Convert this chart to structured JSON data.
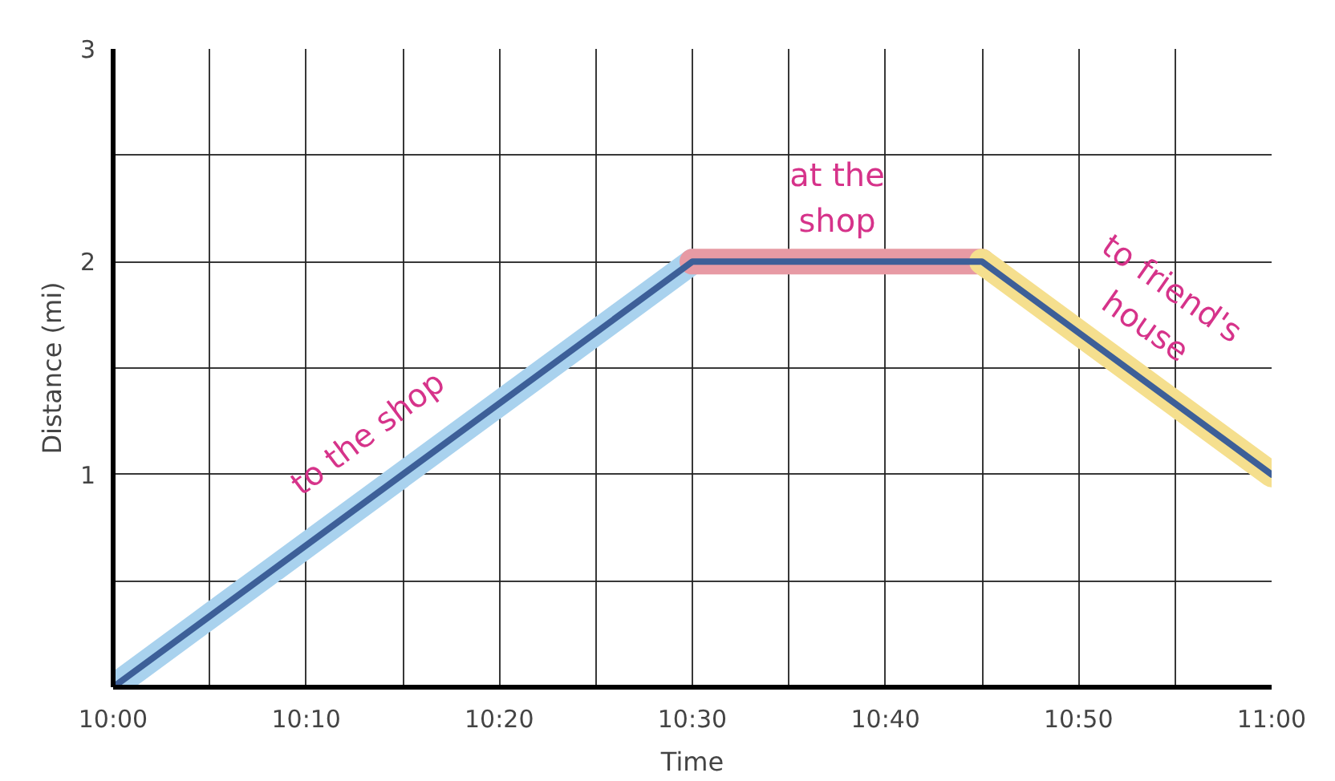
{
  "chart_data": {
    "type": "line",
    "xlabel": "Time",
    "ylabel": "Distance (mi)",
    "xlim": [
      10,
      11
    ],
    "ylim": [
      0,
      3
    ],
    "xticks": [
      {
        "value": 10,
        "label": "10:00"
      },
      {
        "value": 10.0833,
        "label": null
      },
      {
        "value": 10.1667,
        "label": "10:10"
      },
      {
        "value": 10.25,
        "label": null
      },
      {
        "value": 10.3333,
        "label": "10:20"
      },
      {
        "value": 10.4167,
        "label": null
      },
      {
        "value": 10.5,
        "label": "10:30"
      },
      {
        "value": 10.5833,
        "label": null
      },
      {
        "value": 10.6667,
        "label": "10:40"
      },
      {
        "value": 10.75,
        "label": null
      },
      {
        "value": 10.8333,
        "label": "10:50"
      },
      {
        "value": 10.9167,
        "label": null
      },
      {
        "value": 11,
        "label": "11:00"
      }
    ],
    "yticks": [
      {
        "value": 0.5,
        "label": null
      },
      1,
      {
        "value": 1.5,
        "label": null
      },
      2,
      {
        "value": 2.5,
        "label": null
      },
      3
    ],
    "grid": true,
    "marker": "none",
    "line_style": "solid",
    "series": [
      {
        "color": "#a9d2ee",
        "x": [
          10,
          10.5
        ],
        "values": [
          0,
          2
        ]
      },
      {
        "color": "#e79aa4",
        "x": [
          10.5,
          10.75
        ],
        "values": [
          2,
          2
        ]
      },
      {
        "color": "#f5df8e",
        "x": [
          10.75,
          11
        ],
        "values": [
          2,
          1
        ]
      },
      {
        "color": "#3d5f98",
        "x": [
          10,
          10.5,
          10.75,
          11
        ],
        "values": [
          0,
          2,
          2,
          1
        ]
      }
    ],
    "annotations": [
      "to the shop",
      "at the\nshop",
      "to friend's\nhouse"
    ]
  }
}
